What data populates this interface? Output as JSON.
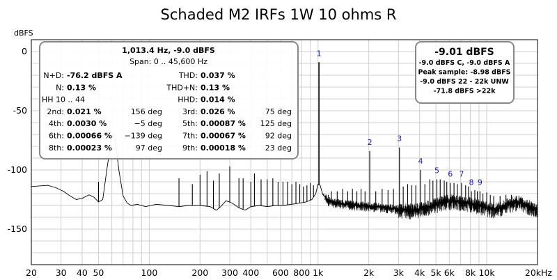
{
  "chart_data": {
    "type": "line",
    "title": "Schaded M2 IRFs 1W 10 ohms R",
    "ylabel": "dBFS",
    "xlabel": "",
    "x_scale": "log",
    "xlim": [
      20,
      20000
    ],
    "ylim": [
      -180,
      10
    ],
    "grid": true,
    "x_ticks": [
      {
        "value": 20,
        "label": "20"
      },
      {
        "value": 30,
        "label": "30"
      },
      {
        "value": 40,
        "label": "40"
      },
      {
        "value": 50,
        "label": "50"
      },
      {
        "value": 100,
        "label": "100"
      },
      {
        "value": 200,
        "label": "200"
      },
      {
        "value": 300,
        "label": "300"
      },
      {
        "value": 400,
        "label": "400"
      },
      {
        "value": 600,
        "label": "600"
      },
      {
        "value": 800,
        "label": "800"
      },
      {
        "value": 1000,
        "label": "1k"
      },
      {
        "value": 2000,
        "label": "2k"
      },
      {
        "value": 3000,
        "label": "3k"
      },
      {
        "value": 4000,
        "label": "4k"
      },
      {
        "value": 5000,
        "label": "5k"
      },
      {
        "value": 6000,
        "label": "6k"
      },
      {
        "value": 8000,
        "label": "8k"
      },
      {
        "value": 10000,
        "label": "10k"
      },
      {
        "value": 20000,
        "label": "20kHz"
      }
    ],
    "y_ticks": [
      {
        "value": 0,
        "label": "0"
      },
      {
        "value": -50,
        "label": "-50"
      },
      {
        "value": -100,
        "label": "-100"
      },
      {
        "value": -150,
        "label": "-150"
      }
    ],
    "series": [
      {
        "color": "#000000",
        "floor": [
          [
            20,
            -114
          ],
          [
            25,
            -113
          ],
          [
            28,
            -115
          ],
          [
            31,
            -118
          ],
          [
            34,
            -122
          ],
          [
            37,
            -125
          ],
          [
            40,
            -124
          ],
          [
            44,
            -121
          ],
          [
            47,
            -123
          ],
          [
            50,
            -127
          ],
          [
            53,
            -125
          ],
          [
            56,
            -100
          ],
          [
            59,
            -78
          ],
          [
            61,
            -70
          ],
          [
            63,
            -76
          ],
          [
            66,
            -100
          ],
          [
            70,
            -122
          ],
          [
            74,
            -128
          ],
          [
            78,
            -130
          ],
          [
            85,
            -129
          ],
          [
            95,
            -131
          ],
          [
            110,
            -129
          ],
          [
            130,
            -130
          ],
          [
            150,
            -131
          ],
          [
            170,
            -130
          ],
          [
            200,
            -130
          ],
          [
            230,
            -131
          ],
          [
            250,
            -134
          ],
          [
            265,
            -131
          ],
          [
            285,
            -126
          ],
          [
            310,
            -128
          ],
          [
            340,
            -132
          ],
          [
            370,
            -134
          ],
          [
            400,
            -131
          ],
          [
            450,
            -130
          ],
          [
            500,
            -131
          ],
          [
            560,
            -130
          ],
          [
            620,
            -130
          ],
          [
            700,
            -129
          ],
          [
            780,
            -128
          ],
          [
            850,
            -127
          ],
          [
            920,
            -125
          ],
          [
            970,
            -120
          ],
          [
            1000,
            -112
          ],
          [
            1030,
            -113
          ],
          [
            1070,
            -121
          ],
          [
            1150,
            -126
          ],
          [
            1300,
            -128
          ],
          [
            1500,
            -129
          ],
          [
            1800,
            -130
          ],
          [
            2200,
            -131
          ],
          [
            2600,
            -132
          ],
          [
            3000,
            -133
          ],
          [
            3500,
            -134
          ],
          [
            4000,
            -133
          ],
          [
            4500,
            -131
          ],
          [
            5000,
            -129
          ],
          [
            5500,
            -127
          ],
          [
            6000,
            -126
          ],
          [
            6500,
            -126
          ],
          [
            7000,
            -127
          ],
          [
            8000,
            -128
          ],
          [
            9000,
            -130
          ],
          [
            10000,
            -132
          ],
          [
            11000,
            -133
          ],
          [
            12000,
            -132
          ],
          [
            13000,
            -130
          ],
          [
            14000,
            -128
          ],
          [
            15000,
            -127
          ],
          [
            16500,
            -128
          ],
          [
            18000,
            -131
          ],
          [
            20000,
            -134
          ]
        ],
        "spikes": [
          [
            50,
            -110
          ],
          [
            150,
            -107
          ],
          [
            180,
            -112
          ],
          [
            200,
            -104
          ],
          [
            220,
            -101
          ],
          [
            240,
            -109
          ],
          [
            260,
            -103
          ],
          [
            300,
            -97
          ],
          [
            340,
            -107
          ],
          [
            360,
            -107
          ],
          [
            400,
            -110
          ],
          [
            420,
            -103
          ],
          [
            460,
            -108
          ],
          [
            500,
            -108
          ],
          [
            540,
            -107
          ],
          [
            580,
            -110
          ],
          [
            620,
            -110
          ],
          [
            660,
            -110
          ],
          [
            700,
            -112
          ],
          [
            740,
            -110
          ],
          [
            780,
            -112
          ],
          [
            820,
            -114
          ],
          [
            860,
            -113
          ],
          [
            900,
            -111
          ],
          [
            940,
            -113
          ],
          [
            1013.4,
            -9.0
          ],
          [
            1080,
            -120
          ],
          [
            1150,
            -121
          ],
          [
            1200,
            -118
          ],
          [
            1300,
            -118
          ],
          [
            1400,
            -116
          ],
          [
            1500,
            -118
          ],
          [
            1600,
            -116
          ],
          [
            1700,
            -118
          ],
          [
            1800,
            -116
          ],
          [
            1900,
            -118
          ],
          [
            2026.8,
            -84
          ],
          [
            2200,
            -118
          ],
          [
            2400,
            -116
          ],
          [
            2600,
            -117
          ],
          [
            2800,
            -116
          ],
          [
            3040.2,
            -81
          ],
          [
            3200,
            -114
          ],
          [
            3400,
            -112
          ],
          [
            3600,
            -113
          ],
          [
            3800,
            -113
          ],
          [
            4053.6,
            -100
          ],
          [
            4300,
            -112
          ],
          [
            4600,
            -108
          ],
          [
            4800,
            -109
          ],
          [
            5067,
            -108
          ],
          [
            5300,
            -108
          ],
          [
            5600,
            -109
          ],
          [
            5800,
            -110
          ],
          [
            6080.4,
            -111
          ],
          [
            6400,
            -111
          ],
          [
            6700,
            -112
          ],
          [
            7093.8,
            -111
          ],
          [
            7500,
            -113
          ],
          [
            7800,
            -114
          ],
          [
            8107.2,
            -118
          ],
          [
            8500,
            -117
          ],
          [
            8800,
            -118
          ],
          [
            9120.6,
            -118
          ],
          [
            9500,
            -120
          ],
          [
            10000,
            -119
          ],
          [
            10500,
            -121
          ],
          [
            11000,
            -122
          ],
          [
            12000,
            -122
          ],
          [
            13000,
            -121
          ],
          [
            14000,
            -121
          ],
          [
            15000,
            -122
          ]
        ]
      }
    ],
    "harmonic_markers": [
      {
        "label": "1",
        "x": 1013.4,
        "y": -9.0
      },
      {
        "label": "2",
        "x": 2026.8,
        "y": -84
      },
      {
        "label": "3",
        "x": 3040.2,
        "y": -81
      },
      {
        "label": "4",
        "x": 4053.6,
        "y": -100
      },
      {
        "label": "5",
        "x": 5067,
        "y": -108
      },
      {
        "label": "6",
        "x": 6080.4,
        "y": -111
      },
      {
        "label": "7",
        "x": 7093.8,
        "y": -111
      },
      {
        "label": "8",
        "x": 8107.2,
        "y": -118
      },
      {
        "label": "9",
        "x": 9120.6,
        "y": -118
      }
    ],
    "stats_box": {
      "freq_level": "1,013.4 Hz, -9.0 dBFS",
      "span": "Span: 0 .. 45,600 Hz",
      "rows": [
        {
          "l1": "N+D:",
          "v1": "-76.2 dBFS A",
          "d1": "",
          "l2": "THD:",
          "v2": "0.037 %",
          "d2": ""
        },
        {
          "l1": "N:",
          "v1": "0.13 %",
          "d1": "",
          "l2": "THD+N:",
          "v2": "0.13 %",
          "d2": ""
        },
        {
          "l1": "HH 10 .. 44",
          "v1": "",
          "d1": "",
          "l2": "HHD:",
          "v2": "0.014 %",
          "d2": ""
        },
        {
          "l1": "2nd:",
          "v1": "0.021 %",
          "d1": "156 deg",
          "l2": "3rd:",
          "v2": "0.026 %",
          "d2": "75 deg"
        },
        {
          "l1": "4th:",
          "v1": "0.0030 %",
          "d1": "−5 deg",
          "l2": "5th:",
          "v2": "0.00087 %",
          "d2": "125 deg"
        },
        {
          "l1": "6th:",
          "v1": "0.00066 %",
          "d1": "−139 deg",
          "l2": "7th:",
          "v2": "0.00067 %",
          "d2": "92 deg"
        },
        {
          "l1": "8th:",
          "v1": "0.00023 %",
          "d1": "97 deg",
          "l2": "9th:",
          "v2": "0.00018 %",
          "d2": "23 deg"
        }
      ]
    },
    "level_box": {
      "main": "-9.01 dBFS",
      "lines": [
        "-9.0 dBFS C, -9.0 dBFS A",
        "Peak sample: -8.98 dBFS",
        "-9.0 dBFS 22 - 22k UNW",
        "-71.8 dBFS >22k"
      ]
    }
  }
}
